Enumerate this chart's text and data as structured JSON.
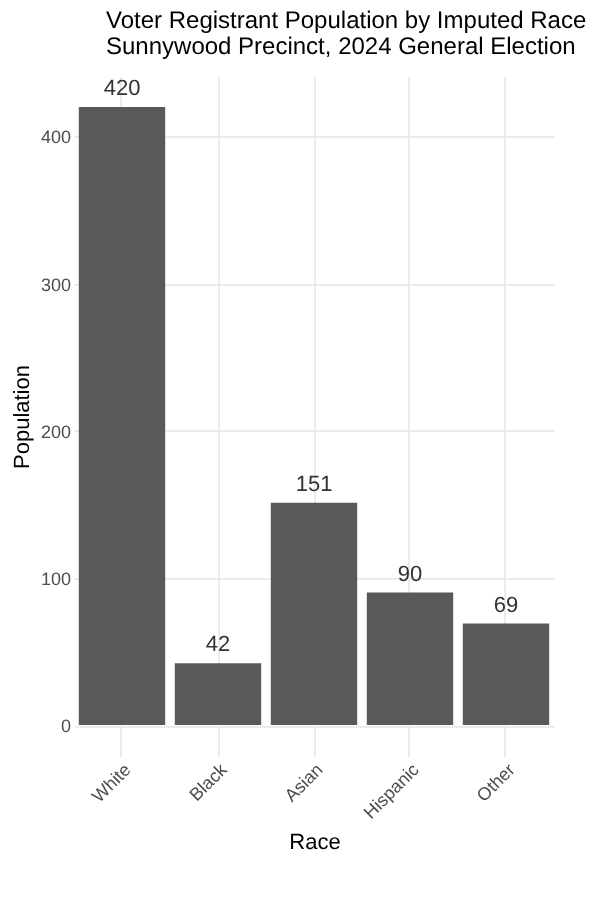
{
  "chart_data": {
    "type": "bar",
    "title": "Voter Registrant Population by Imputed Race",
    "subtitle": "Sunnywood Precinct,  2024 General Election",
    "xlabel": "Race",
    "ylabel": "Population",
    "categories": [
      "White",
      "Black",
      "Asian",
      "Hispanic",
      "Other"
    ],
    "values": [
      420,
      42,
      151,
      90,
      69
    ],
    "color": "#595959",
    "ylim": [
      -21,
      441
    ],
    "yticks": [
      0,
      100,
      200,
      300,
      400
    ],
    "grid": true,
    "data_labels": true
  }
}
